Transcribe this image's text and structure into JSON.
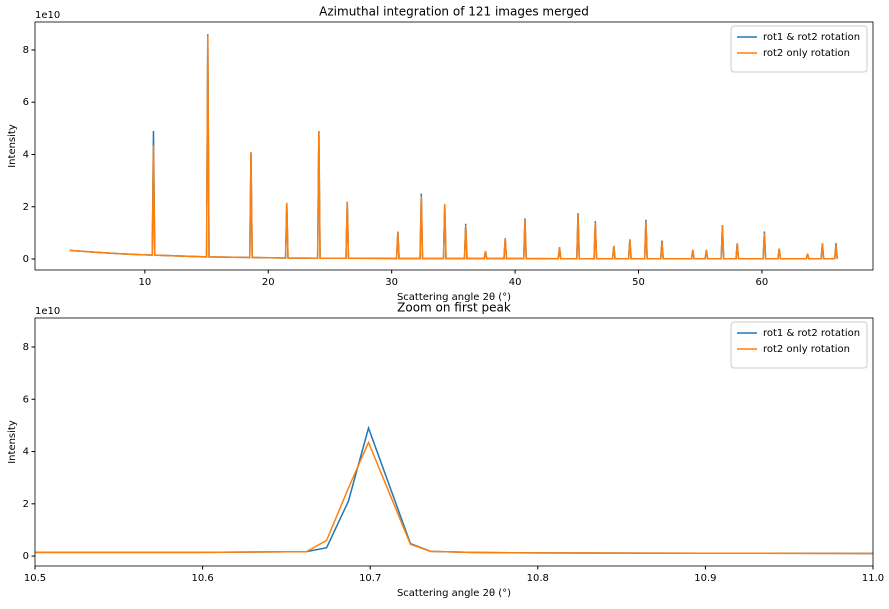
{
  "chart_data": [
    {
      "type": "line",
      "title": "Azimuthal integration of 121 images merged",
      "x_label": "Scattering angle 2θ (°)",
      "y_label": "Intensity",
      "y_offset_label": "1e10",
      "x": [
        3.9,
        6,
        8,
        10.6,
        10.7,
        10.8,
        15.0,
        15.1,
        15.2,
        18.5,
        18.6,
        18.7,
        21.4,
        21.5,
        21.6,
        24.0,
        24.1,
        24.2,
        26.3,
        26.4,
        26.5,
        30.4,
        30.5,
        30.6,
        32.3,
        32.4,
        32.5,
        34.2,
        34.3,
        34.4,
        35.9,
        36.0,
        36.1,
        37.5,
        37.6,
        37.7,
        39.1,
        39.2,
        39.3,
        40.7,
        40.8,
        40.9,
        43.5,
        43.6,
        43.7,
        45.0,
        45.1,
        45.2,
        46.4,
        46.5,
        46.6,
        47.9,
        48.0,
        48.1,
        49.2,
        49.3,
        49.4,
        50.5,
        50.6,
        50.7,
        51.8,
        51.9,
        52.0,
        54.3,
        54.4,
        54.5,
        55.4,
        55.5,
        55.6,
        56.7,
        56.8,
        56.9,
        57.9,
        58.0,
        58.1,
        60.1,
        60.2,
        60.3,
        61.3,
        61.4,
        61.5,
        63.6,
        63.7,
        63.8,
        64.8,
        64.9,
        65.0,
        65.9,
        66.0,
        66.1
      ],
      "series": [
        {
          "name": "rot1 & rot2 rotation",
          "color": "#1f77b4",
          "values": [
            0.33,
            0.26,
            0.2,
            0.15,
            4.9,
            0.15,
            0.08,
            8.6,
            0.08,
            0.06,
            4.05,
            0.06,
            0.04,
            2.15,
            0.04,
            0.03,
            4.9,
            0.03,
            0.03,
            2.2,
            0.03,
            0.02,
            1.05,
            0.02,
            0.02,
            2.5,
            0.02,
            0.02,
            2.1,
            0.02,
            0.02,
            1.35,
            0.02,
            0.02,
            0.3,
            0.02,
            0.02,
            0.8,
            0.02,
            0.02,
            1.55,
            0.02,
            0.01,
            0.45,
            0.01,
            0.01,
            1.75,
            0.01,
            0.01,
            1.45,
            0.01,
            0.01,
            0.5,
            0.01,
            0.01,
            0.75,
            0.01,
            0.01,
            1.5,
            0.01,
            0.01,
            0.7,
            0.01,
            0.01,
            0.35,
            0.01,
            0.01,
            0.35,
            0.01,
            0.01,
            1.3,
            0.01,
            0.01,
            0.6,
            0.01,
            0.01,
            1.05,
            0.01,
            0.01,
            0.4,
            0.01,
            0.01,
            0.2,
            0.01,
            0.01,
            0.6,
            0.01,
            0.01,
            0.6,
            0.01
          ]
        },
        {
          "name": "rot2 only rotation",
          "color": "#ff7f0e",
          "values": [
            0.33,
            0.26,
            0.2,
            0.15,
            4.35,
            0.15,
            0.08,
            8.55,
            0.08,
            0.06,
            4.1,
            0.06,
            0.04,
            2.15,
            0.04,
            0.03,
            4.9,
            0.03,
            0.03,
            2.2,
            0.03,
            0.02,
            1.05,
            0.02,
            0.02,
            2.4,
            0.02,
            0.02,
            2.1,
            0.02,
            0.02,
            1.3,
            0.02,
            0.02,
            0.3,
            0.02,
            0.02,
            0.8,
            0.02,
            0.02,
            1.5,
            0.02,
            0.01,
            0.45,
            0.01,
            0.01,
            1.7,
            0.01,
            0.01,
            1.4,
            0.01,
            0.01,
            0.5,
            0.01,
            0.01,
            0.75,
            0.01,
            0.01,
            1.45,
            0.01,
            0.01,
            0.65,
            0.01,
            0.01,
            0.35,
            0.01,
            0.01,
            0.35,
            0.01,
            0.01,
            1.3,
            0.01,
            0.01,
            0.6,
            0.01,
            0.01,
            1.0,
            0.01,
            0.01,
            0.4,
            0.01,
            0.01,
            0.2,
            0.01,
            0.01,
            0.6,
            0.01,
            0.01,
            0.55,
            0.01
          ]
        }
      ],
      "xlim": [
        1.1,
        69.0
      ],
      "xticks": [
        10,
        20,
        30,
        40,
        50,
        60
      ],
      "ylim": [
        -0.42,
        9.07
      ],
      "yticks": [
        0,
        2,
        4,
        6,
        8
      ],
      "legend": "upper right"
    },
    {
      "type": "line",
      "title": "Zoom on first peak",
      "x_label": "Scattering angle 2θ (°)",
      "y_label": "Intensity",
      "y_offset_label": "1e10",
      "x": [
        10.5,
        10.6,
        10.662,
        10.674,
        10.687,
        10.699,
        10.724,
        10.736,
        10.76,
        10.8,
        10.9,
        11.0
      ],
      "series": [
        {
          "name": "rot1 & rot2 rotation",
          "color": "#1f77b4",
          "values": [
            0.14,
            0.14,
            0.17,
            0.32,
            2.1,
            4.9,
            0.48,
            0.18,
            0.14,
            0.12,
            0.11,
            0.1
          ]
        },
        {
          "name": "rot2 only rotation",
          "color": "#ff7f0e",
          "values": [
            0.14,
            0.14,
            0.17,
            0.6,
            2.6,
            4.35,
            0.45,
            0.18,
            0.14,
            0.12,
            0.11,
            0.1
          ]
        }
      ],
      "xlim": [
        10.5,
        11.0
      ],
      "xticks": [
        10.5,
        10.6,
        10.7,
        10.8,
        10.9,
        {
          "value": 11.0,
          "label": "11.0"
        }
      ],
      "ylim": [
        -0.38,
        9.11
      ],
      "yticks": [
        0,
        2,
        4,
        6,
        8
      ],
      "legend": "upper right"
    }
  ]
}
